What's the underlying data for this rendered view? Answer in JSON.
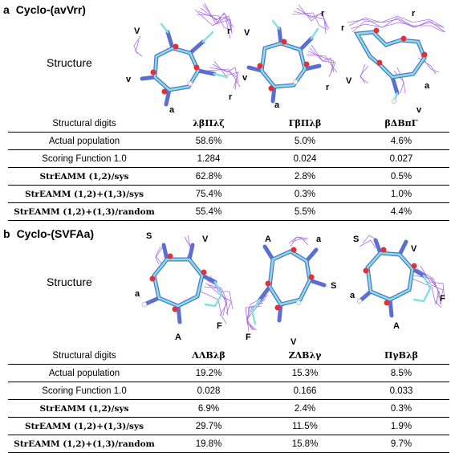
{
  "panel_a": {
    "letter": "a",
    "title": "Cyclo-(avVrr)",
    "structure_label": "Structure",
    "residue_labels": [
      [
        "V",
        "r",
        "v",
        "a",
        "r"
      ],
      [
        "V",
        "r",
        "v",
        "a",
        "r"
      ],
      [
        "r",
        "r",
        "V",
        "a",
        "v"
      ]
    ],
    "table": {
      "rows": [
        {
          "label": "Structural digits",
          "values": [
            "λβΠλζ",
            "ΓβΠλβ",
            "βΔΒπΓ"
          ]
        },
        {
          "label": "Actual population",
          "values": [
            "58.6%",
            "5.0%",
            "4.6%"
          ]
        },
        {
          "label": "Scoring Function 1.0",
          "values": [
            "1.284",
            "0.024",
            "0.027"
          ]
        },
        {
          "label": "StrEAMM (1,2)/sys",
          "values": [
            "62.8%",
            "2.8%",
            "0.5%"
          ]
        },
        {
          "label": "StrEAMM (1,2)+(1,3)/sys",
          "values": [
            "75.4%",
            "0.3%",
            "1.0%"
          ]
        },
        {
          "label": "StrEAMM (1,2)+(1,3)/random",
          "values": [
            "55.4%",
            "5.5%",
            "4.4%"
          ]
        }
      ]
    }
  },
  "panel_b": {
    "letter": "b",
    "title": "Cyclo-(SVFAa)",
    "structure_label": "Structure",
    "residue_labels": [
      [
        "S",
        "V",
        "a",
        "F",
        "A"
      ],
      [
        "A",
        "a",
        "S",
        "F",
        "V"
      ],
      [
        "S",
        "V",
        "a",
        "F",
        "A"
      ]
    ],
    "table": {
      "rows": [
        {
          "label": "Structural digits",
          "values": [
            "ΛΛΒλβ",
            "ΖΛΒλγ",
            "ΠγΒλβ"
          ]
        },
        {
          "label": "Actual population",
          "values": [
            "19.2%",
            "15.3%",
            "8.5%"
          ]
        },
        {
          "label": "Scoring Function 1.0",
          "values": [
            "0.028",
            "0.166",
            "0.033"
          ]
        },
        {
          "label": "StrEAMM (1,2)/sys",
          "values": [
            "6.9%",
            "2.4%",
            "0.3%"
          ]
        },
        {
          "label": "StrEAMM (1,2)+(1,3)/sys",
          "values": [
            "29.7%",
            "11.5%",
            "1.9%"
          ]
        },
        {
          "label": "StrEAMM (1,2)+(1,3)/random",
          "values": [
            "19.8%",
            "15.8%",
            "9.7%"
          ]
        }
      ]
    }
  },
  "colors": {
    "ensemble": "#9b55e0",
    "backbone": "#5a6fd0",
    "carbon": "#7fe3e0",
    "oxygen": "#e0303a",
    "hydrogen": "#f2f2f2"
  },
  "icons": [
    "molecular-structure-ensemble"
  ]
}
